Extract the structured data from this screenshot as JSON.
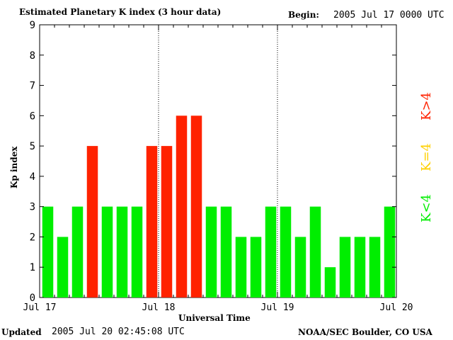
{
  "header": {
    "title": "Estimated Planetary K index (3 hour data)",
    "begin_label": "Begin:",
    "begin_value": "2005 Jul 17 0000 UTC"
  },
  "footer": {
    "updated_label": "Updated",
    "updated_value": "2005 Jul 20 02:45:08 UTC",
    "credit": "NOAA/SEC Boulder, CO USA"
  },
  "legend": {
    "low": "K<4",
    "mid": "K=4",
    "high": "K>4"
  },
  "colors": {
    "low": "#00ee00",
    "mid": "#ffd000",
    "high": "#ff2200",
    "frame": "#000000",
    "background": "#ffffff"
  },
  "chart_data": {
    "type": "bar",
    "title": "Estimated Planetary K index (3 hour data)",
    "xlabel": "Universal Time",
    "ylabel": "Kp index",
    "ylim": [
      0,
      9
    ],
    "yticks": [
      "0",
      "1",
      "2",
      "3",
      "4",
      "5",
      "6",
      "7",
      "8",
      "9"
    ],
    "xticks": [
      "Jul 17",
      "Jul 18",
      "Jul 19",
      "Jul 20"
    ],
    "day_separators": [
      "Jul 18",
      "Jul 19"
    ],
    "grid": false,
    "categories": [
      "Jul 17 00",
      "Jul 17 03",
      "Jul 17 06",
      "Jul 17 09",
      "Jul 17 12",
      "Jul 17 15",
      "Jul 17 18",
      "Jul 17 21",
      "Jul 18 00",
      "Jul 18 03",
      "Jul 18 06",
      "Jul 18 09",
      "Jul 18 12",
      "Jul 18 15",
      "Jul 18 18",
      "Jul 18 21",
      "Jul 19 00",
      "Jul 19 03",
      "Jul 19 06",
      "Jul 19 09",
      "Jul 19 12",
      "Jul 19 15",
      "Jul 19 18",
      "Jul 19 21"
    ],
    "values": [
      3,
      2,
      3,
      5,
      3,
      3,
      3,
      5,
      5,
      6,
      6,
      3,
      3,
      2,
      2,
      3,
      3,
      2,
      3,
      1,
      2,
      2,
      2,
      3
    ]
  }
}
